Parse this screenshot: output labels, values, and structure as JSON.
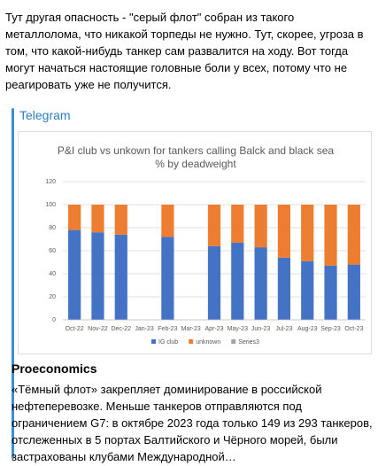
{
  "post": {
    "text": "Тут другая опасность - \"серый флот\" собран из такого металлолома, что никакой торпеды не нужно. Тут, скорее, угроза в том, что какой-нибудь танкер сам развалится на ходу. Вот тогда могут начаться настоящие головные боли у всех, потому что не реагировать уже не получится."
  },
  "link_preview": {
    "site": "Telegram",
    "title": "Proeconomics",
    "text": "«Тёмный флот» закрепляет доминирование в российской нефтеперевозке. Меньше танкеров отправляются под ограничением G7: в октябре 2023 года только 149 из 293 танкеров, отслеженных в 5 портах Балтийского и Чёрного морей, были застрахованы клубами Международной…"
  },
  "chart_data": {
    "type": "stacked-bar",
    "title": "P&I club vs unkown for tankers calling Balck and black sea % by deadweight",
    "categories": [
      "Oct-22",
      "Nov-22",
      "Dec-22",
      "Jan-23",
      "Feb-23",
      "Mar-23",
      "Apr-23",
      "May-23",
      "Jun-23",
      "Jul-23",
      "Aug-23",
      "Sep-23",
      "Oct-23"
    ],
    "series": [
      {
        "name": "IG club",
        "color": "#4472c4",
        "values": [
          78,
          76,
          74,
          null,
          72,
          null,
          64,
          67,
          63,
          54,
          51,
          47,
          48
        ]
      },
      {
        "name": "unknown",
        "color": "#ed7d31",
        "values": [
          22,
          24,
          26,
          null,
          28,
          null,
          36,
          33,
          37,
          46,
          49,
          53,
          52
        ]
      },
      {
        "name": "Series3",
        "color": "#a5a5a5",
        "values": [
          null,
          null,
          null,
          null,
          null,
          null,
          null,
          null,
          null,
          null,
          null,
          null,
          null
        ]
      }
    ],
    "ylim": [
      0,
      120
    ],
    "yticks": [
      0,
      20,
      40,
      60,
      80,
      100,
      120
    ],
    "grid": true
  }
}
